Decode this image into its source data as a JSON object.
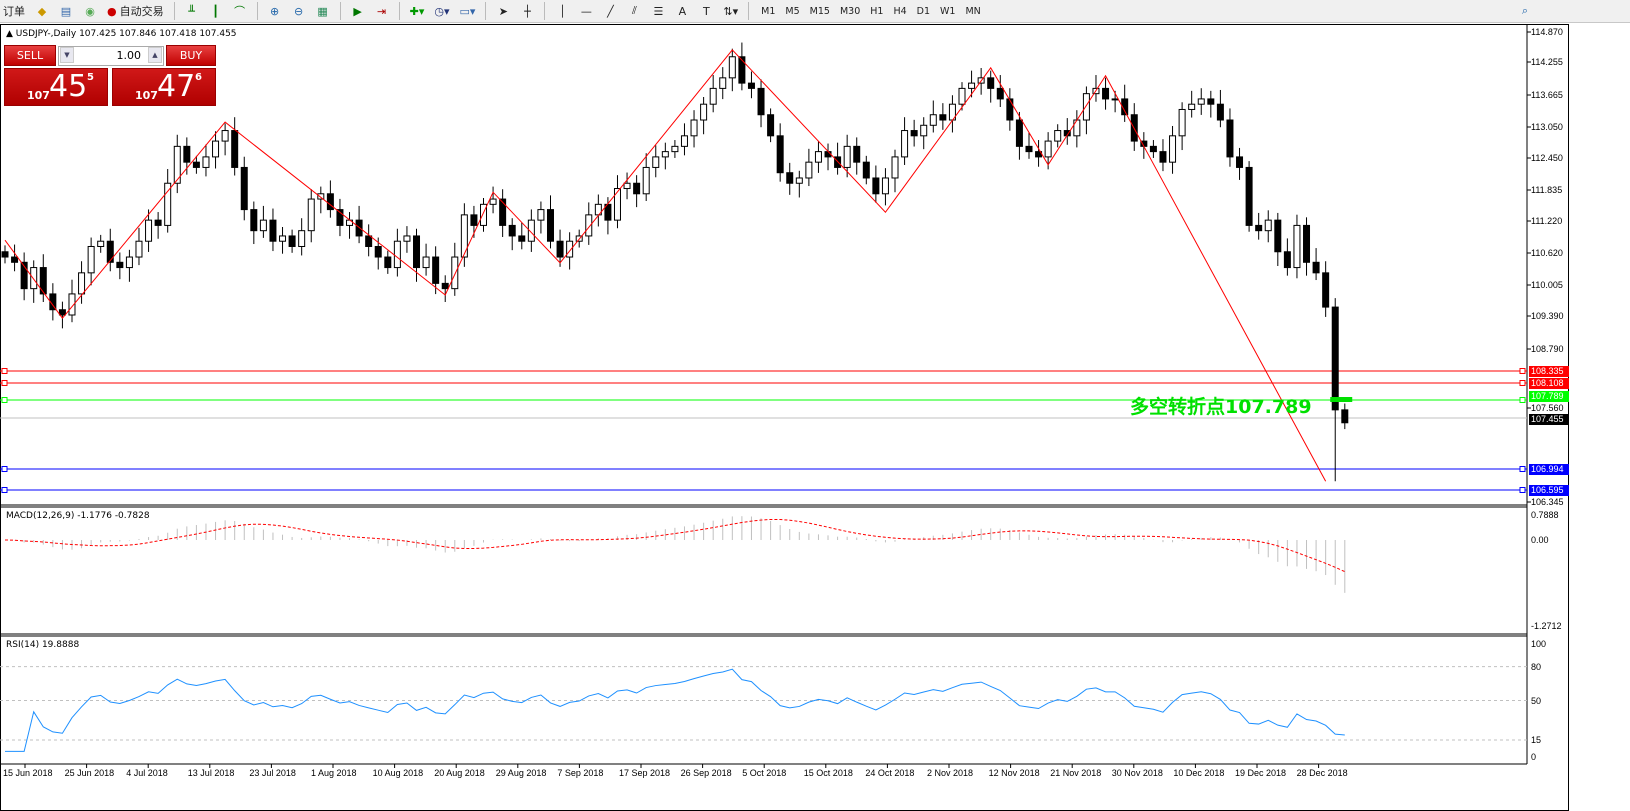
{
  "toolbar": {
    "orders_label": "订单",
    "autotrade_label": "自动交易",
    "timeframes": [
      "M1",
      "M5",
      "M15",
      "M30",
      "H1",
      "H4",
      "D1",
      "W1",
      "MN"
    ]
  },
  "chart": {
    "title": "USDJPY-,Daily  107.425 107.846 107.418 107.455",
    "symbol": "USDJPY-",
    "period": "Daily",
    "trade_panel": {
      "sell_label": "SELL",
      "buy_label": "BUY",
      "lot": "1.00",
      "sell_prefix": "107",
      "sell_big": "45",
      "sell_sup": "5",
      "buy_prefix": "107",
      "buy_big": "47",
      "buy_sup": "6"
    },
    "annotation": "多空转折点107.789",
    "price_axis": [
      "114.870",
      "114.255",
      "113.665",
      "113.050",
      "112.450",
      "111.835",
      "111.220",
      "110.620",
      "110.005",
      "109.390",
      "108.790",
      "107.560",
      "106.345"
    ],
    "price_lines": [
      {
        "value": "108.335",
        "color": "#ff0000"
      },
      {
        "value": "108.108",
        "color": "#ff0000"
      },
      {
        "value": "107.789",
        "color": "#00ff00"
      },
      {
        "value": "107.455",
        "color": "#000000"
      },
      {
        "value": "106.994",
        "color": "#0000ff"
      },
      {
        "value": "106.595",
        "color": "#0000ff"
      }
    ],
    "dates": [
      "15 Jun 2018",
      "25 Jun 2018",
      "4 Jul 2018",
      "13 Jul 2018",
      "23 Jul 2018",
      "1 Aug 2018",
      "10 Aug 2018",
      "20 Aug 2018",
      "29 Aug 2018",
      "7 Sep 2018",
      "17 Sep 2018",
      "26 Sep 2018",
      "5 Oct 2018",
      "15 Oct 2018",
      "24 Oct 2018",
      "2 Nov 2018",
      "12 Nov 2018",
      "21 Nov 2018",
      "30 Nov 2018",
      "10 Dec 2018",
      "19 Dec 2018",
      "28 Dec 2018"
    ],
    "closes": [
      110.6,
      110.5,
      110.0,
      110.4,
      109.9,
      109.6,
      109.5,
      109.9,
      110.3,
      110.8,
      110.9,
      110.5,
      110.4,
      110.6,
      110.9,
      111.3,
      111.2,
      112.0,
      112.7,
      112.4,
      112.3,
      112.5,
      112.8,
      113.0,
      112.3,
      111.5,
      111.1,
      111.3,
      110.9,
      111.0,
      110.8,
      111.1,
      111.7,
      111.8,
      111.5,
      111.2,
      111.3,
      111.0,
      110.8,
      110.6,
      110.4,
      110.9,
      111.0,
      110.4,
      110.6,
      110.1,
      110.0,
      110.6,
      111.4,
      111.2,
      111.6,
      111.7,
      111.2,
      111.0,
      110.9,
      111.3,
      111.5,
      110.9,
      110.6,
      110.9,
      111.0,
      111.4,
      111.6,
      111.3,
      111.9,
      112.0,
      111.8,
      112.3,
      112.5,
      112.6,
      112.7,
      112.9,
      113.2,
      113.5,
      113.8,
      114.0,
      114.4,
      113.9,
      113.8,
      113.3,
      112.9,
      112.2,
      112.0,
      112.1,
      112.4,
      112.6,
      112.5,
      112.3,
      112.7,
      112.4,
      112.1,
      111.8,
      112.1,
      112.5,
      113.0,
      112.9,
      113.1,
      113.3,
      113.2,
      113.5,
      113.8,
      113.9,
      114.0,
      113.8,
      113.6,
      113.2,
      112.7,
      112.6,
      112.5,
      112.8,
      113.0,
      112.9,
      113.2,
      113.7,
      113.8,
      113.6,
      113.6,
      113.3,
      112.8,
      112.7,
      112.6,
      112.4,
      112.9,
      113.4,
      113.5,
      113.6,
      113.5,
      113.2,
      112.5,
      112.3,
      111.2,
      111.1,
      111.3,
      110.7,
      110.4,
      111.2,
      110.5,
      110.3,
      109.65,
      107.7,
      107.455
    ],
    "period_low": 106.345,
    "zigzag": [
      [
        0,
        110.92
      ],
      [
        6,
        109.44
      ],
      [
        23,
        113.16
      ],
      [
        46,
        109.88
      ],
      [
        51,
        111.83
      ],
      [
        58,
        110.49
      ],
      [
        76,
        114.53
      ],
      [
        92,
        111.45
      ],
      [
        103,
        114.19
      ],
      [
        109,
        112.35
      ],
      [
        115,
        114.04
      ],
      [
        138,
        106.345
      ]
    ]
  },
  "macd": {
    "label": "MACD(12,26,9) -1.1776 -0.7828",
    "axis": [
      "0.7888",
      "0.00",
      "-1.2712"
    ]
  },
  "rsi": {
    "label": "RSI(14) 19.8888",
    "axis": [
      "100",
      "80",
      "50",
      "15",
      "0"
    ]
  }
}
